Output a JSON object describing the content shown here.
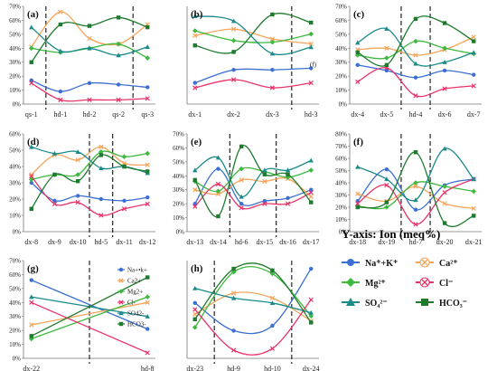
{
  "legend": {
    "title": "Y-axis: Ion (meq%)",
    "items": [
      {
        "key": "NaK",
        "label": "Na⁺+K⁺",
        "color": "#3b6fd1",
        "marker": "circle"
      },
      {
        "key": "Ca",
        "label": "Ca²⁺",
        "color": "#f5a55a",
        "marker": "x"
      },
      {
        "key": "Mg",
        "label": "Mg²⁺",
        "color": "#3fb83f",
        "marker": "diamond"
      },
      {
        "key": "Cl",
        "label": "Cl⁻",
        "color": "#e8336a",
        "marker": "x"
      },
      {
        "key": "SO4",
        "label": "SO₄²⁻",
        "color": "#1a8a8a",
        "marker": "triangle"
      },
      {
        "key": "HCO3",
        "label": "HCO₃⁻",
        "color": "#1f7a2e",
        "marker": "square"
      }
    ]
  },
  "chart_data": [
    {
      "type": "line",
      "panel": "(a)",
      "categories": [
        "qs-1",
        "hd-1",
        "hd-2",
        "qs-2",
        "qs-3"
      ],
      "ylim": [
        0,
        70
      ],
      "yticks": [
        "0%",
        "10%",
        "20%",
        "30%",
        "40%",
        "50%",
        "60%",
        "70%"
      ],
      "dividers": [
        0.5,
        3.5
      ],
      "series": [
        {
          "key": "NaK",
          "values": [
            17,
            9,
            15,
            14,
            12
          ]
        },
        {
          "key": "Ca",
          "values": [
            41,
            66,
            47,
            43,
            57
          ]
        },
        {
          "key": "Mg",
          "values": [
            40,
            37,
            40,
            43,
            33
          ]
        },
        {
          "key": "Cl",
          "values": [
            15,
            3,
            3,
            3,
            4
          ]
        },
        {
          "key": "SO4",
          "values": [
            55,
            38,
            40,
            35,
            41
          ]
        },
        {
          "key": "HCO3",
          "values": [
            30,
            57,
            56,
            62,
            55
          ]
        }
      ]
    },
    {
      "type": "line",
      "panel": "(b)",
      "categories": [
        "dx-1",
        "dx-2",
        "dx-3",
        "hd-3"
      ],
      "ylim": [
        0,
        60
      ],
      "yticks": [],
      "dividers": [
        2.5
      ],
      "annotation": "(f)",
      "series": [
        {
          "key": "NaK",
          "values": [
            13,
            21,
            21,
            22
          ]
        },
        {
          "key": "Ca",
          "values": [
            42,
            46,
            40,
            37
          ]
        },
        {
          "key": "Mg",
          "values": [
            45,
            39,
            38,
            43
          ]
        },
        {
          "key": "Cl",
          "values": [
            10,
            15,
            10,
            13
          ]
        },
        {
          "key": "SO4",
          "values": [
            54,
            51,
            31,
            35
          ]
        },
        {
          "key": "HCO3",
          "values": [
            36,
            32,
            55,
            50
          ]
        }
      ]
    },
    {
      "type": "line",
      "panel": "(c)",
      "categories": [
        "dx-4",
        "dx-5",
        "hd-4",
        "dx-6",
        "dx-7"
      ],
      "ylim": [
        0,
        70
      ],
      "yticks": [
        "0%",
        "10%",
        "20%",
        "30%",
        "40%",
        "50%",
        "60%",
        "70%"
      ],
      "dividers": [
        1.5,
        2.5
      ],
      "series": [
        {
          "key": "NaK",
          "values": [
            28,
            24,
            19,
            24,
            21
          ]
        },
        {
          "key": "Ca",
          "values": [
            39,
            40,
            35,
            39,
            48
          ]
        },
        {
          "key": "Mg",
          "values": [
            35,
            33,
            45,
            40,
            36
          ]
        },
        {
          "key": "Cl",
          "values": [
            16,
            26,
            6,
            11,
            13
          ]
        },
        {
          "key": "SO4",
          "values": [
            44,
            54,
            29,
            30,
            37
          ]
        },
        {
          "key": "HCO3",
          "values": [
            37,
            28,
            61,
            58,
            45
          ]
        }
      ]
    },
    {
      "type": "line",
      "panel": "(d)",
      "categories": [
        "dx-8",
        "dx-9",
        "dx-10",
        "hd-5",
        "dx-11",
        "dx-12"
      ],
      "ylim": [
        0,
        60
      ],
      "yticks": [
        "0%",
        "10%",
        "20%",
        "30%",
        "40%",
        "50%",
        "60%"
      ],
      "dividers": [
        2.5,
        3.5
      ],
      "series": [
        {
          "key": "NaK",
          "values": [
            30,
            19,
            22,
            20,
            19,
            21
          ]
        },
        {
          "key": "Ca",
          "values": [
            35,
            47,
            44,
            52,
            42,
            41
          ]
        },
        {
          "key": "Mg",
          "values": [
            32,
            35,
            35,
            49,
            46,
            48
          ]
        },
        {
          "key": "Cl",
          "values": [
            34,
            17,
            18,
            10,
            14,
            17
          ]
        },
        {
          "key": "SO4",
          "values": [
            52,
            48,
            49,
            39,
            40,
            36
          ]
        },
        {
          "key": "HCO3",
          "values": [
            14,
            35,
            31,
            47,
            40,
            37
          ]
        }
      ]
    },
    {
      "type": "line",
      "panel": "(e)",
      "categories": [
        "dx-13",
        "dx-14",
        "hd-6",
        "dx-15",
        "dx-16",
        "dx-17"
      ],
      "ylim": [
        0,
        70
      ],
      "yticks": [
        "0%",
        "10%",
        "20%",
        "30%",
        "40%",
        "50%",
        "60%",
        "70%"
      ],
      "dividers": [
        1.5,
        3.5
      ],
      "series": [
        {
          "key": "NaK",
          "values": [
            20,
            45,
            20,
            22,
            24,
            30
          ]
        },
        {
          "key": "Ca",
          "values": [
            30,
            27,
            37,
            36,
            38,
            25
          ]
        },
        {
          "key": "Mg",
          "values": [
            36,
            29,
            45,
            43,
            39,
            44
          ]
        },
        {
          "key": "Cl",
          "values": [
            18,
            34,
            17,
            20,
            20,
            28
          ]
        },
        {
          "key": "SO4",
          "values": [
            44,
            53,
            25,
            44,
            44,
            51
          ]
        },
        {
          "key": "HCO3",
          "values": [
            37,
            11,
            61,
            41,
            41,
            21
          ]
        }
      ]
    },
    {
      "type": "line",
      "panel": "(f)",
      "categories": [
        "dx-18",
        "dx-19",
        "hd-7",
        "dx-20",
        "dx-21"
      ],
      "ylim": [
        0,
        80
      ],
      "yticks": [
        "0%",
        "10%",
        "20%",
        "30%",
        "40%",
        "50%",
        "60%",
        "70%",
        "80%"
      ],
      "dividers": [
        1.5,
        2.5
      ],
      "series": [
        {
          "key": "NaK",
          "values": [
            25,
            51,
            18,
            38,
            43
          ]
        },
        {
          "key": "Ca",
          "values": [
            31,
            25,
            37,
            23,
            19
          ]
        },
        {
          "key": "Mg",
          "values": [
            21,
            20,
            40,
            37,
            33
          ]
        },
        {
          "key": "Cl",
          "values": [
            23,
            38,
            6,
            32,
            43
          ]
        },
        {
          "key": "SO4",
          "values": [
            53,
            43,
            26,
            68,
            43
          ]
        },
        {
          "key": "HCO3",
          "values": [
            20,
            24,
            65,
            7,
            13
          ]
        }
      ]
    },
    {
      "type": "line",
      "panel": "(g)",
      "categories": [
        "dx-22",
        "hd-8"
      ],
      "ylim": [
        0,
        70
      ],
      "yticks": [
        "0%",
        "10%",
        "20%",
        "30%",
        "40%",
        "50%",
        "60%",
        "70%"
      ],
      "dividers": [
        0.5
      ],
      "inline_legend": [
        "Na+•k+",
        "Ca2+",
        "Mg2+",
        "Cl-",
        "SO42-",
        "HCO3-"
      ],
      "series": [
        {
          "key": "NaK",
          "values": [
            56,
            21
          ]
        },
        {
          "key": "Ca",
          "values": [
            24,
            40
          ]
        },
        {
          "key": "Mg",
          "values": [
            14,
            44
          ]
        },
        {
          "key": "Cl",
          "values": [
            40,
            4
          ]
        },
        {
          "key": "SO4",
          "values": [
            44,
            30
          ]
        },
        {
          "key": "HCO3",
          "values": [
            16,
            58
          ]
        }
      ]
    },
    {
      "type": "line",
      "panel": "(h)",
      "categories": [
        "dx-23",
        "hd-9",
        "hd-10",
        "dx-24"
      ],
      "ylim": [
        0,
        60
      ],
      "yticks": [],
      "dividers": [
        0.5,
        2.5
      ],
      "series": [
        {
          "key": "NaK",
          "values": [
            34,
            17,
            20,
            55
          ]
        },
        {
          "key": "Ca",
          "values": [
            27,
            40,
            37,
            23
          ]
        },
        {
          "key": "Mg",
          "values": [
            19,
            53,
            52,
            26
          ]
        },
        {
          "key": "Cl",
          "values": [
            30,
            5,
            6,
            36
          ]
        },
        {
          "key": "SO4",
          "values": [
            43,
            37,
            34,
            28
          ]
        },
        {
          "key": "HCO3",
          "values": [
            24,
            55,
            54,
            22
          ]
        }
      ]
    }
  ]
}
